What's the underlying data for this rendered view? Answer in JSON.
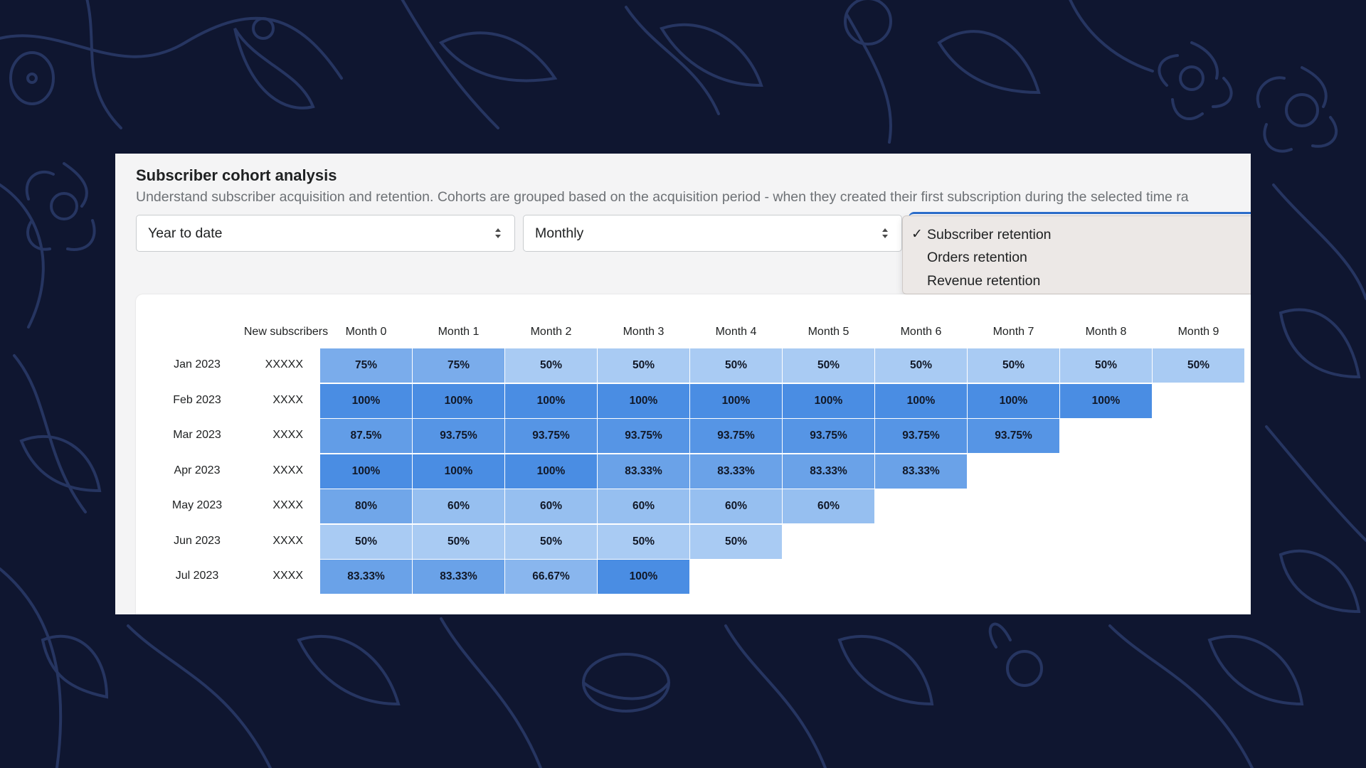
{
  "header": {
    "title": "Subscriber cohort analysis",
    "subtitle": "Understand subscriber acquisition and retention. Cohorts are grouped based on the acquisition period - when they created their first subscription during the selected time ra"
  },
  "filters": {
    "date_range": "Year to date",
    "period": "Monthly"
  },
  "dropdown": {
    "options": [
      {
        "label": "Subscriber retention",
        "selected": true
      },
      {
        "label": "Orders retention",
        "selected": false
      },
      {
        "label": "Revenue retention",
        "selected": false
      }
    ]
  },
  "table": {
    "new_subscribers_header": "New subscribers",
    "month_headers": [
      "Month 0",
      "Month 1",
      "Month 2",
      "Month 3",
      "Month 4",
      "Month 5",
      "Month 6",
      "Month 7",
      "Month 8",
      "Month 9"
    ],
    "rows": [
      {
        "cohort": "Jan 2023",
        "count": "XXXXX",
        "values": [
          "75%",
          "75%",
          "50%",
          "50%",
          "50%",
          "50%",
          "50%",
          "50%",
          "50%",
          "50%"
        ]
      },
      {
        "cohort": "Feb 2023",
        "count": "XXXX",
        "values": [
          "100%",
          "100%",
          "100%",
          "100%",
          "100%",
          "100%",
          "100%",
          "100%",
          "100%"
        ]
      },
      {
        "cohort": "Mar 2023",
        "count": "XXXX",
        "values": [
          "87.5%",
          "93.75%",
          "93.75%",
          "93.75%",
          "93.75%",
          "93.75%",
          "93.75%",
          "93.75%"
        ]
      },
      {
        "cohort": "Apr 2023",
        "count": "XXXX",
        "values": [
          "100%",
          "100%",
          "100%",
          "83.33%",
          "83.33%",
          "83.33%",
          "83.33%"
        ]
      },
      {
        "cohort": "May 2023",
        "count": "XXXX",
        "values": [
          "80%",
          "60%",
          "60%",
          "60%",
          "60%",
          "60%"
        ]
      },
      {
        "cohort": "Jun 2023",
        "count": "XXXX",
        "values": [
          "50%",
          "50%",
          "50%",
          "50%",
          "50%"
        ]
      },
      {
        "cohort": "Jul 2023",
        "count": "XXXX",
        "values": [
          "83.33%",
          "83.33%",
          "66.67%",
          "100%"
        ]
      }
    ]
  },
  "colors": {
    "background": "#0f1630",
    "pattern": "#263561",
    "focus_blue": "#2c6ecb",
    "heat_low": "#a9cbf3",
    "heat_high": "#4a8de3"
  }
}
